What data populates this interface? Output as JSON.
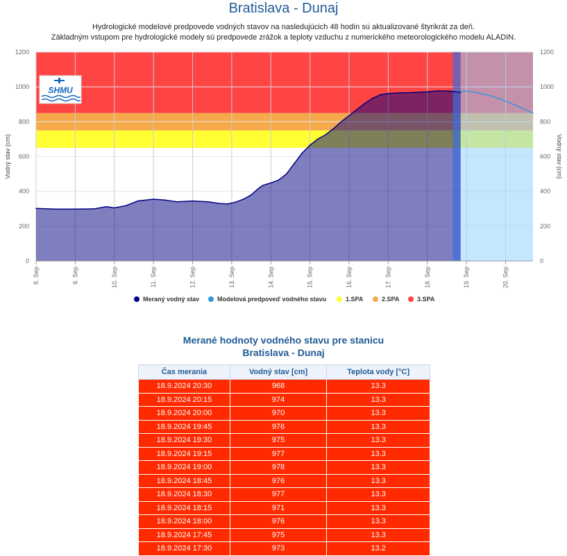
{
  "header": {
    "title": "Bratislava - Dunaj",
    "subtitle_line1": "Hydrologické modelové predpovede vodných stavov na nasledujúcich 48 hodín sú aktualizované štyrikrát za deň.",
    "subtitle_line2": "Základným vstupom pre hydrologické modely sú predpovede zrážok a teploty vzduchu z numerického meteorologického modelu ALADIN."
  },
  "logo": {
    "text": "SHMU"
  },
  "chart_data": {
    "type": "area",
    "ylabel": "Vodný stav (cm)",
    "ylabel_right": "Vodný stav (cm)",
    "ylim": [
      0,
      1200
    ],
    "yticks": [
      0,
      200,
      400,
      600,
      800,
      1000,
      1200
    ],
    "xlim": [
      8.0,
      20.7
    ],
    "xticks": [
      8,
      9,
      10,
      11,
      12,
      13,
      14,
      15,
      16,
      17,
      18,
      19,
      20
    ],
    "xtick_labels": [
      "8. Sep",
      "9. Sep",
      "10. Sep",
      "11. Sep",
      "12. Sep",
      "13. Sep",
      "14. Sep",
      "15. Sep",
      "16. Sep",
      "17. Sep",
      "18. Sep",
      "19. Sep",
      "20. Sep"
    ],
    "thresholds": [
      {
        "name": "1.SPA",
        "from": 650,
        "to": 750,
        "color": "#ffff33"
      },
      {
        "name": "2.SPA",
        "from": 750,
        "to": 850,
        "color": "#f5a94a"
      },
      {
        "name": "3.SPA",
        "from": 850,
        "to": 1200,
        "color": "#ff4444"
      }
    ],
    "series": [
      {
        "name": "Meraný vodný stav",
        "color": "#000080",
        "x": [
          8.0,
          8.5,
          9.0,
          9.5,
          9.8,
          10.0,
          10.3,
          10.6,
          11.0,
          11.3,
          11.6,
          12.0,
          12.4,
          12.7,
          12.9,
          13.1,
          13.3,
          13.5,
          13.7,
          13.8,
          14.0,
          14.2,
          14.4,
          14.6,
          14.8,
          15.0,
          15.2,
          15.4,
          15.6,
          15.8,
          16.0,
          16.2,
          16.4,
          16.6,
          16.8,
          17.0,
          17.3,
          17.6,
          18.0,
          18.3,
          18.6,
          18.85
        ],
        "values": [
          302,
          298,
          298,
          300,
          312,
          305,
          318,
          345,
          355,
          350,
          340,
          345,
          340,
          330,
          328,
          338,
          355,
          380,
          420,
          435,
          448,
          465,
          500,
          560,
          620,
          665,
          700,
          725,
          760,
          800,
          835,
          870,
          905,
          935,
          955,
          962,
          966,
          967,
          972,
          977,
          975,
          968
        ]
      },
      {
        "name": "Modelová predpoveď vodného stavu",
        "color": "#3399dd",
        "x": [
          18.85,
          19.0,
          19.2,
          19.4,
          19.6,
          19.8,
          20.0,
          20.2,
          20.4,
          20.6,
          20.7
        ],
        "values": [
          975,
          975,
          970,
          960,
          950,
          935,
          918,
          900,
          880,
          860,
          848
        ]
      }
    ],
    "legend": [
      {
        "label": "Meraný vodný stav",
        "color": "#000080"
      },
      {
        "label": "Modelová predpoveď vodného stavu",
        "color": "#3399dd"
      },
      {
        "label": "1.SPA",
        "color": "#ffff33"
      },
      {
        "label": "2.SPA",
        "color": "#f5a94a"
      },
      {
        "label": "3.SPA",
        "color": "#ff4444"
      }
    ]
  },
  "table": {
    "title": "Merané hodnoty vodného stavu pre stanicu",
    "station": "Bratislava - Dunaj",
    "headers": [
      "Čas merania",
      "Vodný stav [cm]",
      "Teplota vody [°C]"
    ],
    "rows": [
      [
        "18.9.2024 20:30",
        "968",
        "13.3"
      ],
      [
        "18.9.2024 20:15",
        "974",
        "13.3"
      ],
      [
        "18.9.2024 20:00",
        "970",
        "13.3"
      ],
      [
        "18.9.2024 19:45",
        "976",
        "13.3"
      ],
      [
        "18.9.2024 19:30",
        "975",
        "13.3"
      ],
      [
        "18.9.2024 19:15",
        "977",
        "13.3"
      ],
      [
        "18.9.2024 19:00",
        "978",
        "13.3"
      ],
      [
        "18.9.2024 18:45",
        "976",
        "13.3"
      ],
      [
        "18.9.2024 18:30",
        "977",
        "13.3"
      ],
      [
        "18.9.2024 18:15",
        "971",
        "13.3"
      ],
      [
        "18.9.2024 18:00",
        "976",
        "13.3"
      ],
      [
        "18.9.2024 17:45",
        "975",
        "13.3"
      ],
      [
        "18.9.2024 17:30",
        "973",
        "13.2"
      ]
    ]
  }
}
